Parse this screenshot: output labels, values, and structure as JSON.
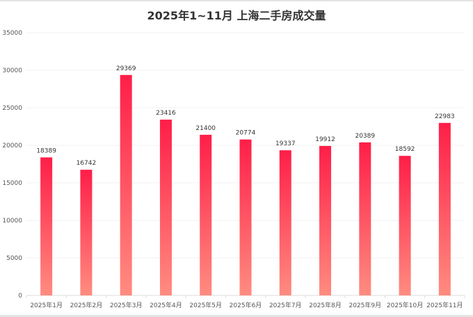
{
  "chart_data": {
    "type": "bar",
    "title": "2025年1~11月 上海二手房成交量",
    "xlabel": "",
    "ylabel": "",
    "categories": [
      "2025年1月",
      "2025年2月",
      "2025年3月",
      "2025年4月",
      "2025年5月",
      "2025年6月",
      "2025年7月",
      "2025年8月",
      "2025年9月",
      "2025年10月",
      "2025年11月"
    ],
    "values": [
      18389,
      16742,
      29369,
      23416,
      21400,
      20774,
      19337,
      19912,
      20389,
      18592,
      22983
    ],
    "ylim": [
      0,
      35000
    ],
    "yticks": [
      0,
      5000,
      10000,
      15000,
      20000,
      25000,
      30000,
      35000
    ],
    "grid": true,
    "legend": "none",
    "colors": {
      "bar_top": "#ff1e48",
      "bar_bottom": "#ff8c80"
    }
  }
}
